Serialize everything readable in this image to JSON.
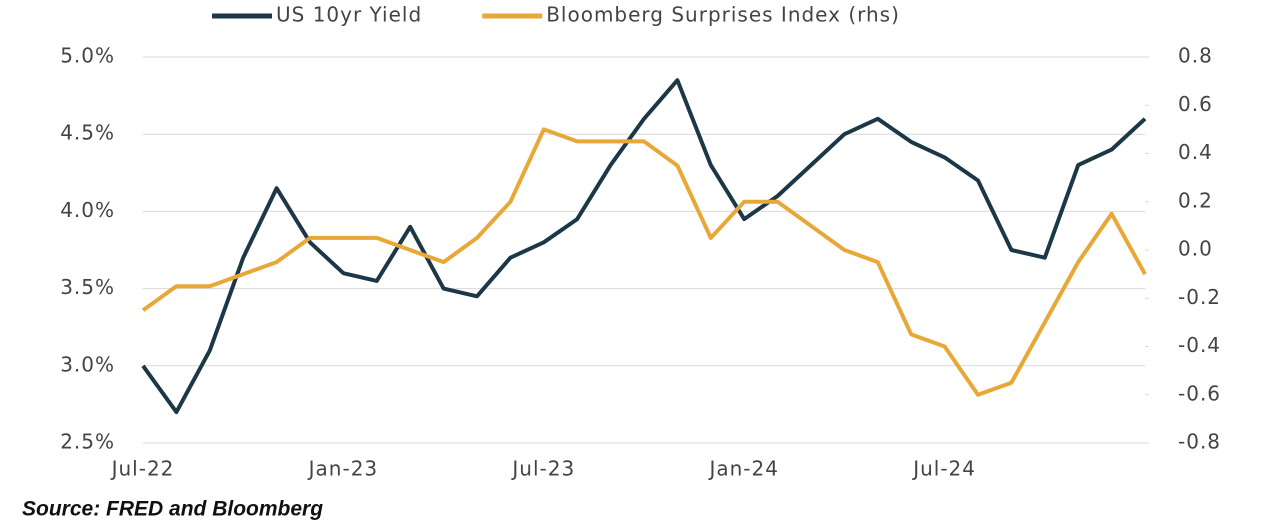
{
  "chart_data": {
    "type": "line",
    "categories": [
      "Jul-22",
      null,
      null,
      null,
      null,
      null,
      "Jan-23",
      null,
      null,
      null,
      null,
      null,
      "Jul-23",
      null,
      null,
      null,
      null,
      null,
      "Jan-24",
      null,
      null,
      null,
      null,
      null,
      "Jul-24",
      null,
      null,
      null,
      null,
      null,
      null
    ],
    "series": [
      {
        "name": "US 10yr Yield",
        "color": "#1c3847",
        "values": [
          3.0,
          2.7,
          3.1,
          3.7,
          4.15,
          3.8,
          3.6,
          3.55,
          3.9,
          3.5,
          3.45,
          3.7,
          3.8,
          3.95,
          4.3,
          4.6,
          4.85,
          4.3,
          3.95,
          4.1,
          4.3,
          4.5,
          4.6,
          4.45,
          4.35,
          4.2,
          3.75,
          3.7,
          4.3,
          4.4,
          4.6
        ]
      },
      {
        "name": "Bloomberg Surprises Index (rhs)",
        "color": "#e8a838",
        "axis": "y2",
        "values": [
          -0.25,
          -0.15,
          -0.15,
          -0.1,
          -0.05,
          0.05,
          0.05,
          0.05,
          0.0,
          -0.05,
          0.05,
          0.2,
          0.5,
          0.45,
          0.45,
          0.45,
          0.35,
          0.05,
          0.2,
          0.2,
          0.1,
          0.0,
          -0.05,
          -0.35,
          -0.4,
          -0.6,
          -0.55,
          -0.3,
          -0.05,
          0.15,
          -0.1
        ]
      }
    ],
    "ylim": [
      2.5,
      5.0
    ],
    "yticks": [
      {
        "value": 2.5,
        "label": "2.5%"
      },
      {
        "value": 3.0,
        "label": "3.0%"
      },
      {
        "value": 3.5,
        "label": "3.5%"
      },
      {
        "value": 4.0,
        "label": "4.0%"
      },
      {
        "value": 4.5,
        "label": "4.5%"
      },
      {
        "value": 5.0,
        "label": "5.0%"
      }
    ],
    "y2lim": [
      -0.8,
      0.8
    ],
    "y2ticks": [
      -0.8,
      -0.6,
      -0.4,
      -0.2,
      {
        "value": 0,
        "label": "0.0"
      },
      0.2,
      0.4,
      0.6,
      0.8
    ],
    "grid": true,
    "legend": "top",
    "note": "Source: FRED and Bloomberg"
  }
}
